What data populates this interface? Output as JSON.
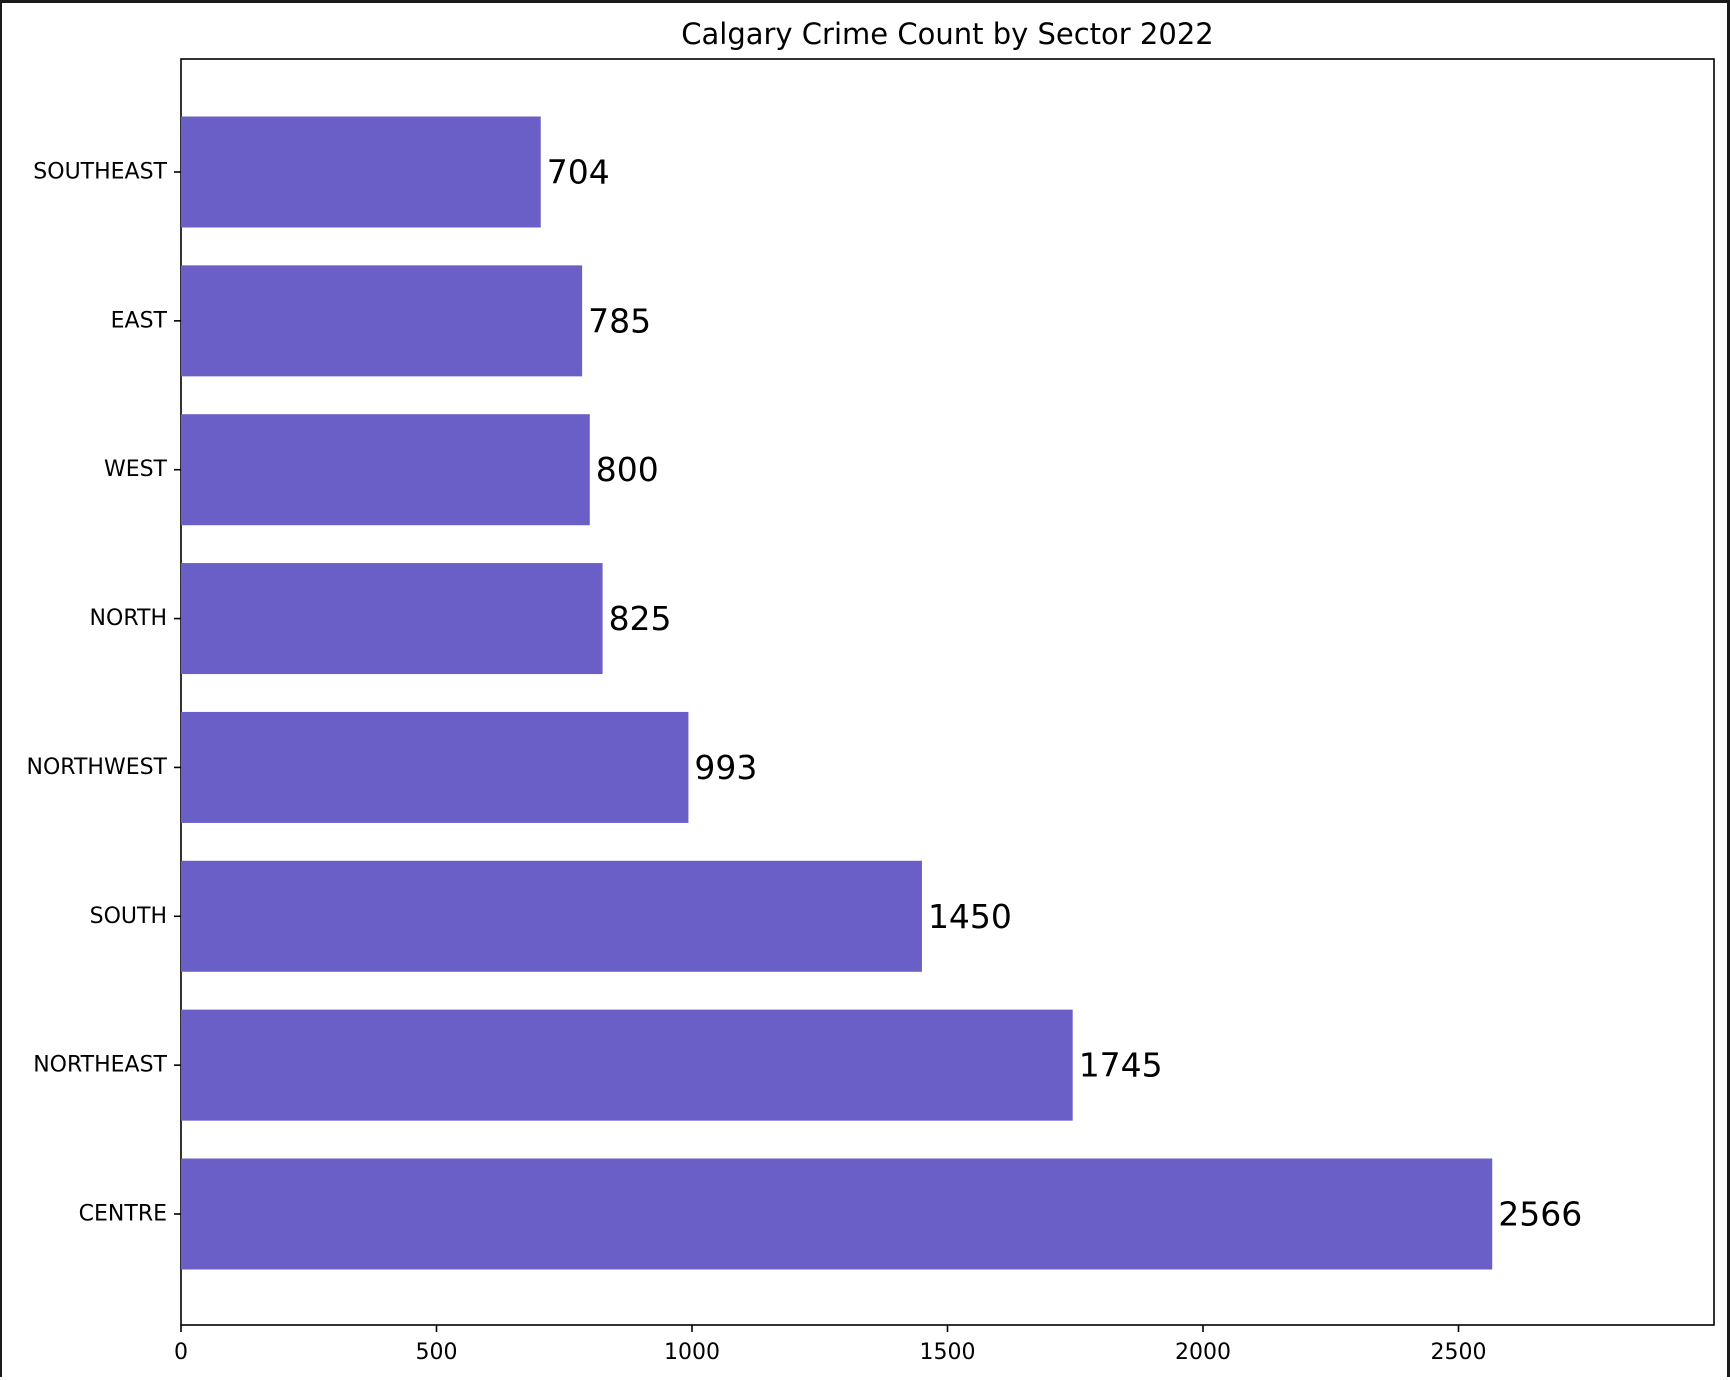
{
  "chart_data": {
    "type": "bar",
    "orientation": "horizontal",
    "title": "Calgary Crime Count by Sector 2022",
    "xlabel": "",
    "ylabel": "",
    "categories": [
      "SOUTHEAST",
      "EAST",
      "WEST",
      "NORTH",
      "NORTHWEST",
      "SOUTH",
      "NORTHEAST",
      "CENTRE"
    ],
    "values": [
      704,
      785,
      800,
      825,
      993,
      1450,
      1745,
      2566
    ],
    "data_labels": [
      "704",
      "785",
      "800",
      "825",
      "993",
      "1450",
      "1745",
      "2566"
    ],
    "xlim": [
      0,
      3000
    ],
    "x_ticks": [
      0,
      500,
      1000,
      1500,
      2000,
      2500
    ],
    "x_tick_labels": [
      "0",
      "500",
      "1000",
      "1500",
      "2000",
      "2500"
    ],
    "grid": false,
    "legend": "none",
    "bar_color": "#6a5fc7"
  }
}
